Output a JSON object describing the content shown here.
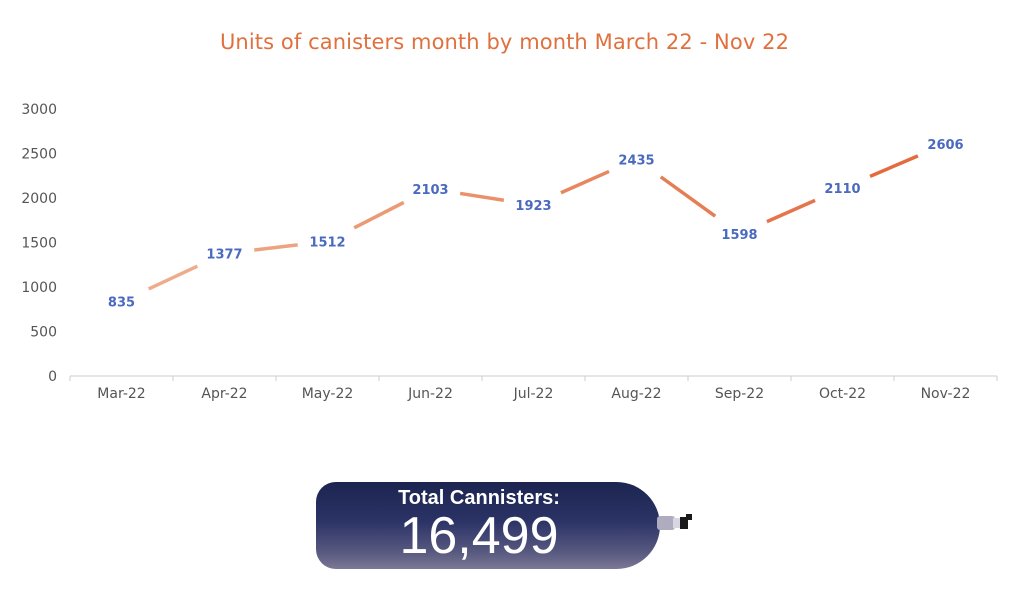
{
  "chart_data": {
    "type": "line",
    "title": "Units of canisters month by month March 22 - Nov 22",
    "categories": [
      "Mar-22",
      "Apr-22",
      "May-22",
      "Jun-22",
      "Jul-22",
      "Aug-22",
      "Sep-22",
      "Oct-22",
      "Nov-22"
    ],
    "values": [
      835,
      1377,
      1512,
      2103,
      1923,
      2435,
      1598,
      2110,
      2606
    ],
    "ylim": [
      0,
      3000
    ],
    "yticks": [
      0,
      500,
      1000,
      1500,
      2000,
      2500,
      3000
    ],
    "xlabel": "",
    "ylabel": "",
    "grid": false,
    "legend": "none",
    "colors": {
      "line_start": "#f0b18f",
      "line_end": "#e2673a",
      "data_label": "#4a6abf",
      "title": "#e0703e",
      "axis": "#cccccc"
    }
  },
  "total": {
    "label": "Total Cannisters:",
    "value": "16,499",
    "icon": "gas-canister-icon",
    "colors": {
      "top": "#1c2450",
      "bottom": "#7b7895"
    }
  }
}
